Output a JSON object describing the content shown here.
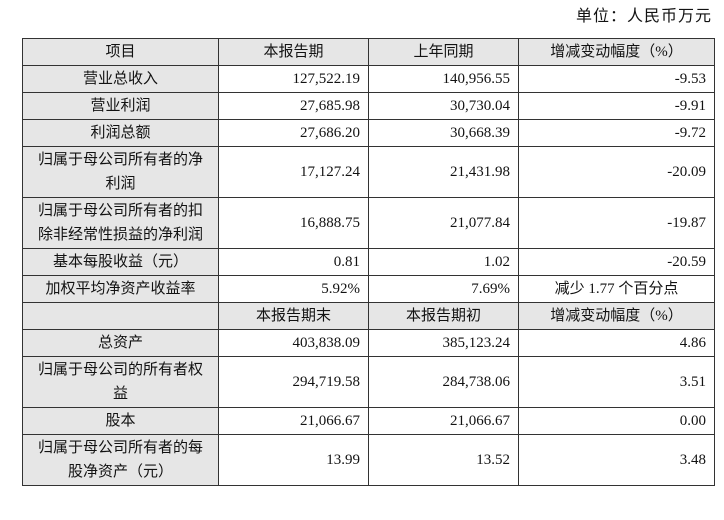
{
  "page": {
    "unit_label": "单位：人民币万元"
  },
  "table": {
    "period_header": [
      "项目",
      "本报告期",
      "上年同期",
      "增减变动幅度（%）"
    ],
    "period_rows": [
      {
        "item": "营业总收入",
        "current": "127,522.19",
        "prior": "140,956.55",
        "change": "-9.53",
        "change_centered": false
      },
      {
        "item": "营业利润",
        "current": "27,685.98",
        "prior": "30,730.04",
        "change": "-9.91",
        "change_centered": false
      },
      {
        "item": "利润总额",
        "current": "27,686.20",
        "prior": "30,668.39",
        "change": "-9.72",
        "change_centered": false
      },
      {
        "item": "归属于母公司所有者的净利润",
        "current": "17,127.24",
        "prior": "21,431.98",
        "change": "-20.09",
        "change_centered": false
      },
      {
        "item": "归属于母公司所有者的扣除非经常性损益的净利润",
        "current": "16,888.75",
        "prior": "21,077.84",
        "change": "-19.87",
        "change_centered": false
      },
      {
        "item": "基本每股收益（元）",
        "current": "0.81",
        "prior": "1.02",
        "change": "-20.59",
        "change_centered": false
      },
      {
        "item": "加权平均净资产收益率",
        "current": "5.92%",
        "prior": "7.69%",
        "change": "减少 1.77 个百分点",
        "change_centered": true
      }
    ],
    "balance_header": [
      "",
      "本报告期末",
      "本报告期初",
      "增减变动幅度（%）"
    ],
    "balance_rows": [
      {
        "item": "总资产",
        "current": "403,838.09",
        "prior": "385,123.24",
        "change": "4.86",
        "change_centered": false
      },
      {
        "item": "归属于母公司的所有者权益",
        "current": "294,719.58",
        "prior": "284,738.06",
        "change": "3.51",
        "change_centered": false
      },
      {
        "item": "股本",
        "current": "21,066.67",
        "prior": "21,066.67",
        "change": "0.00",
        "change_centered": false
      },
      {
        "item": "归属于母公司所有者的每股净资产（元）",
        "current": "13.99",
        "prior": "13.52",
        "change": "3.48",
        "change_centered": false
      }
    ]
  }
}
